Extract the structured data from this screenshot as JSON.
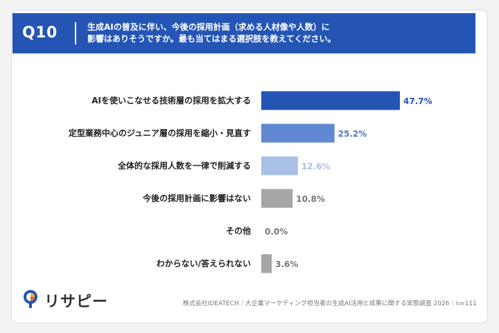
{
  "header": {
    "qnum": "Q10",
    "question_line1": "生成AIの普及に伴い、今後の採用計画（求める人材像や人数）に",
    "question_line2": "影響はありそうですか。最も当てはまる選択肢を教えてください。"
  },
  "chart_data": {
    "type": "bar",
    "orientation": "horizontal",
    "categories": [
      "AIを使いこなせる技術層の採用を拡大する",
      "定型業務中心のジュニア層の採用を縮小・見直す",
      "全体的な採用人数を一律で削減する",
      "今後の採用計画に影響はない",
      "その他",
      "わからない/答えられない"
    ],
    "values": [
      47.7,
      25.2,
      12.6,
      10.8,
      0.0,
      3.6
    ],
    "value_labels": [
      "47.7%",
      "25.2%",
      "12.6%",
      "10.8%",
      "0.0%",
      "3.6%"
    ],
    "bar_colors": [
      "#2455b5",
      "#6189d3",
      "#a8c0e6",
      "#a6a6a6",
      "#a6a6a6",
      "#a6a6a6"
    ],
    "label_colors": [
      "#2455b5",
      "#4f79c7",
      "#a8c0e6",
      "#777777",
      "#777777",
      "#777777"
    ],
    "xlim": [
      0,
      100
    ],
    "grid": false,
    "legend": "none"
  },
  "footer": {
    "logo_text": "リサピー",
    "source": "株式会社IDEATECH｜大企業マーケティング担当者の生成AI活用と成果に関する実態調査 2026｜n=111"
  }
}
